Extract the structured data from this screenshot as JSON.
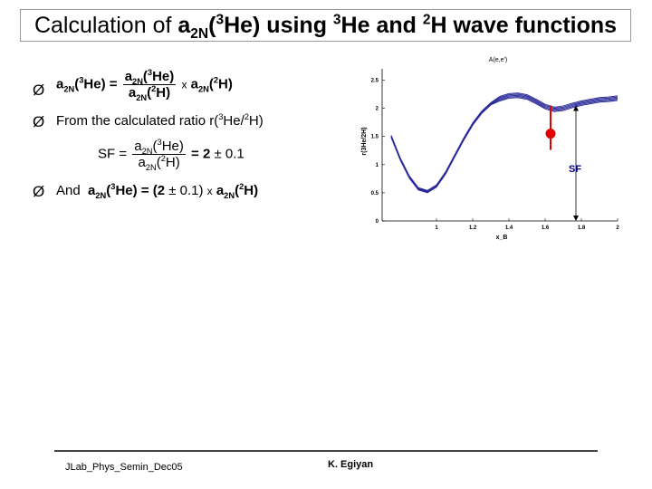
{
  "title": {
    "prefix": "Calculation of ",
    "a": "a",
    "a_sub": "2N",
    "paren_open": "(",
    "nuc_sup": "3",
    "nuc": "He)",
    "rest1": " using ",
    "sup1": "3",
    "rest2": "He and ",
    "sup2": "2",
    "rest3": "H wave functions"
  },
  "bullets": {
    "arrow": "Ø",
    "eq1": {
      "lhs": "a",
      "lhs_sub": "2N",
      "lhs_mid": "(",
      "lhs_sup": "3",
      "lhs_end": "He) =",
      "num": "a",
      "num_sub": "2N",
      "num_mid": "(",
      "num_sup": "3",
      "num_end": "He)",
      "den": "a",
      "den_sub": "2N",
      "den_mid": "(",
      "den_sup": "2",
      "den_end": "H)",
      "times": "x",
      "rhs": "a",
      "rhs_sub": "2N",
      "rhs_mid": "(",
      "rhs_sup": "2",
      "rhs_end": "H)"
    },
    "line2": {
      "text": "From the calculated ratio r(",
      "sup1": "3",
      "mid": "He/",
      "sup2": "2",
      "end": "H)"
    },
    "sf_eq": {
      "lhs": "SF =",
      "num": "a",
      "num_sub": "2N",
      "num_mid": "(",
      "num_sup": "3",
      "num_end": "He)",
      "den": "a",
      "den_sub": "2N",
      "den_mid": "(",
      "den_sup": "2",
      "den_end": "H)",
      "eq": "= 2",
      "pm": "± 0.1"
    },
    "line3": {
      "and": "And",
      "a1": "a",
      "a1_sub": "2N",
      "a1_mid": "(",
      "a1_sup": "3",
      "a1_end": "He) = (2",
      "pm": "± 0.1)",
      "times": "x",
      "a2": "a",
      "a2_sub": "2N",
      "a2_mid": "(",
      "a2_sup": "2",
      "a2_end": "H)"
    }
  },
  "footer": {
    "left": "JLab_Phys_Semin_Dec05",
    "right": "K. Egiyan"
  },
  "chart_data": {
    "type": "line",
    "title": "A(e,e')",
    "xlabel": "x_B",
    "ylabel": "r(3He/2H)",
    "xlim": [
      0.7,
      2.0
    ],
    "ylim": [
      0,
      2.7
    ],
    "xticks": [
      "1",
      "1.2",
      "1.4",
      "1.6",
      "1.8",
      "2"
    ],
    "yticks": [
      "0",
      "0.5",
      "1",
      "1.5",
      "2",
      "2.5"
    ],
    "series_color": "#2a2a9a",
    "x": [
      0.75,
      0.8,
      0.85,
      0.9,
      0.95,
      1.0,
      1.05,
      1.1,
      1.15,
      1.2,
      1.25,
      1.3,
      1.35,
      1.4,
      1.45,
      1.5,
      1.55,
      1.6,
      1.65,
      1.7,
      1.75,
      1.8,
      1.85,
      1.9,
      1.95,
      2.0
    ],
    "y": [
      1.5,
      1.1,
      0.78,
      0.57,
      0.52,
      0.62,
      0.85,
      1.15,
      1.45,
      1.72,
      1.93,
      2.08,
      2.17,
      2.22,
      2.23,
      2.2,
      2.12,
      2.03,
      1.98,
      2.0,
      2.05,
      2.09,
      2.12,
      2.15,
      2.16,
      2.18
    ],
    "sf_marker": {
      "x": 1.63,
      "y": 1.55,
      "label": "SF",
      "color": "#e00000"
    },
    "sf_arrow_x": 1.77
  }
}
